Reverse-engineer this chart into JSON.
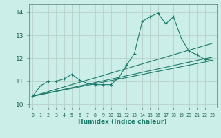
{
  "bg_color": "#cceee8",
  "grid_color": "#b8cfc8",
  "line_color": "#1a7a6a",
  "xlim": [
    -0.5,
    23.5
  ],
  "ylim": [
    9.85,
    14.35
  ],
  "yticks": [
    10,
    11,
    12,
    13,
    14
  ],
  "xticks": [
    0,
    1,
    2,
    3,
    4,
    5,
    6,
    7,
    8,
    9,
    10,
    11,
    12,
    13,
    14,
    15,
    16,
    17,
    18,
    19,
    20,
    21,
    22,
    23
  ],
  "xlabel": "Humidex (Indice chaleur)",
  "x_main": [
    0,
    1,
    2,
    3,
    4,
    5,
    6,
    7,
    8,
    9,
    10,
    11,
    12,
    13,
    14,
    15,
    16,
    17,
    18,
    19,
    20,
    21,
    22,
    23
  ],
  "y_main": [
    10.35,
    10.8,
    11.0,
    11.0,
    11.1,
    11.3,
    11.05,
    10.9,
    10.85,
    10.85,
    10.85,
    11.15,
    11.7,
    12.2,
    13.6,
    13.8,
    13.95,
    13.5,
    13.8,
    12.85,
    12.3,
    12.15,
    11.95,
    11.9
  ],
  "trend_lines": [
    {
      "x": [
        0,
        23
      ],
      "y": [
        10.35,
        11.9
      ]
    },
    {
      "x": [
        0,
        23
      ],
      "y": [
        10.35,
        12.05
      ]
    },
    {
      "x": [
        0,
        23
      ],
      "y": [
        10.35,
        12.65
      ]
    }
  ]
}
